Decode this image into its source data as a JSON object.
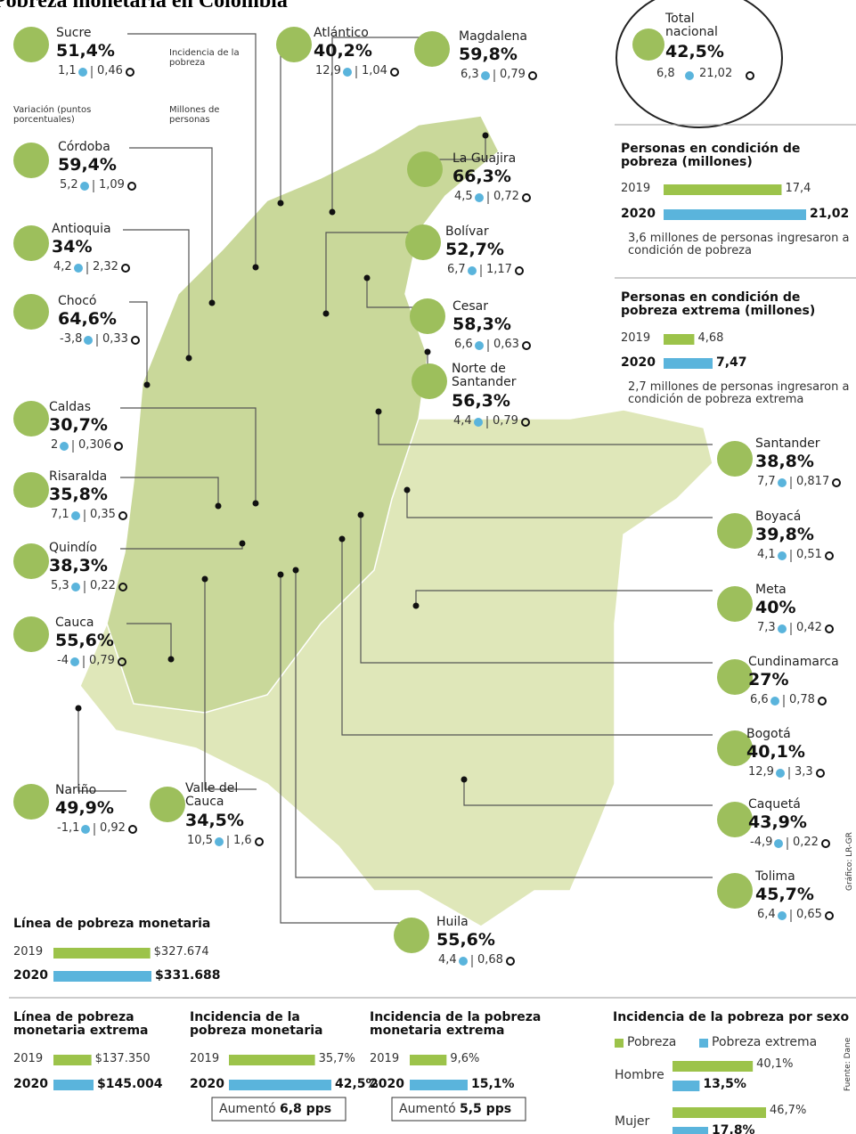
{
  "title": "Pobreza monetaria en Colombia",
  "legend": {
    "incidence": "Incidencia de la pobreza",
    "variation": "Variación (puntos porcentuales)",
    "persons": "Millones de personas"
  },
  "national": {
    "label": "Total nacional",
    "pct": "42,5%",
    "variation": "6,8",
    "persons": "21,02"
  },
  "colors": {
    "poverty": "#9cc34a",
    "extreme": "#5ab4dc",
    "circle": "#9dbf5c"
  },
  "departments": [
    {
      "name": "Sucre",
      "pct": "51,4%",
      "variation": "1,1",
      "persons": "0,46"
    },
    {
      "name": "Atlántico",
      "pct": "40,2%",
      "variation": "12,9",
      "persons": "1,04"
    },
    {
      "name": "Magdalena",
      "pct": "59,8%",
      "variation": "6,3",
      "persons": "0,79"
    },
    {
      "name": "Córdoba",
      "pct": "59,4%",
      "variation": "5,2",
      "persons": "1,09"
    },
    {
      "name": "La Guajira",
      "pct": "66,3%",
      "variation": "4,5",
      "persons": "0,72"
    },
    {
      "name": "Antioquia",
      "pct": "34%",
      "variation": "4,2",
      "persons": "2,32"
    },
    {
      "name": "Bolívar",
      "pct": "52,7%",
      "variation": "6,7",
      "persons": "1,17"
    },
    {
      "name": "Chocó",
      "pct": "64,6%",
      "variation": "-3,8",
      "persons": "0,33"
    },
    {
      "name": "Cesar",
      "pct": "58,3%",
      "variation": "6,6",
      "persons": "0,63"
    },
    {
      "name": "Norte de Santander",
      "pct": "56,3%",
      "variation": "4,4",
      "persons": "0,79"
    },
    {
      "name": "Caldas",
      "pct": "30,7%",
      "variation": "2",
      "persons": "0,306"
    },
    {
      "name": "Risaralda",
      "pct": "35,8%",
      "variation": "7,1",
      "persons": "0,35"
    },
    {
      "name": "Quindío",
      "pct": "38,3%",
      "variation": "5,3",
      "persons": "0,22"
    },
    {
      "name": "Cauca",
      "pct": "55,6%",
      "variation": "-4",
      "persons": "0,79"
    },
    {
      "name": "Nariño",
      "pct": "49,9%",
      "variation": "-1,1",
      "persons": "0,92"
    },
    {
      "name": "Valle del Cauca",
      "pct": "34,5%",
      "variation": "10,5",
      "persons": "1,6"
    },
    {
      "name": "Santander",
      "pct": "38,8%",
      "variation": "7,7",
      "persons": "0,817"
    },
    {
      "name": "Boyacá",
      "pct": "39,8%",
      "variation": "4,1",
      "persons": "0,51"
    },
    {
      "name": "Meta",
      "pct": "40%",
      "variation": "7,3",
      "persons": "0,42"
    },
    {
      "name": "Cundinamarca",
      "pct": "27%",
      "variation": "6,6",
      "persons": "0,78"
    },
    {
      "name": "Bogotá",
      "pct": "40,1%",
      "variation": "12,9",
      "persons": "3,3"
    },
    {
      "name": "Caquetá",
      "pct": "43,9%",
      "variation": "-4,9",
      "persons": "0,22"
    },
    {
      "name": "Tolima",
      "pct": "45,7%",
      "variation": "6,4",
      "persons": "0,65"
    },
    {
      "name": "Huila",
      "pct": "55,6%",
      "variation": "4,4",
      "persons": "0,68"
    }
  ],
  "panels": [
    {
      "title": "Personas en condición de pobreza (millones)",
      "rows": [
        {
          "label": "2019",
          "value": 17.4,
          "value_label": "17,4"
        },
        {
          "label": "2020",
          "value": 21.02,
          "value_label": "21,02"
        }
      ],
      "note": "3,6 millones de personas ingresaron a condición de pobreza"
    },
    {
      "title": "Personas en condición de pobreza extrema (millones)",
      "rows": [
        {
          "label": "2019",
          "value": 4.68,
          "value_label": "4,68"
        },
        {
          "label": "2020",
          "value": 7.47,
          "value_label": "7,47"
        }
      ],
      "note": "2,7 millones de personas ingresaron a condición de pobreza extrema"
    },
    {
      "title": "Línea de pobreza monetaria",
      "rows": [
        {
          "label": "2019",
          "value": 327674,
          "value_label": "$327.674"
        },
        {
          "label": "2020",
          "value": 331688,
          "value_label": "$331.688"
        }
      ]
    },
    {
      "title": "Línea de pobreza monetaria extrema",
      "rows": [
        {
          "label": "2019",
          "value": 137350,
          "value_label": "$137.350"
        },
        {
          "label": "2020",
          "value": 145004,
          "value_label": "$145.004"
        }
      ]
    },
    {
      "title": "Incidencia de la pobreza monetaria",
      "rows": [
        {
          "label": "2019",
          "value": 35.7,
          "value_label": "35,7%"
        },
        {
          "label": "2020",
          "value": 42.5,
          "value_label": "42,5%"
        }
      ],
      "boost": {
        "text": "Aumentó",
        "amount": "6,8 pps"
      }
    },
    {
      "title": "Incidencia de la pobreza monetaria extrema",
      "rows": [
        {
          "label": "2019",
          "value": 9.6,
          "value_label": "9,6%"
        },
        {
          "label": "2020",
          "value": 15.1,
          "value_label": "15,1%"
        }
      ],
      "boost": {
        "text": "Aumentó",
        "amount": "5,5 pps"
      }
    }
  ],
  "by_sex": {
    "title": "Incidencia de la pobreza por sexo",
    "legend": [
      "Pobreza",
      "Pobreza extrema"
    ],
    "groups": [
      {
        "label": "Hombre",
        "values": [
          40.1,
          13.5
        ],
        "value_labels": [
          "40,1%",
          "13,5%"
        ]
      },
      {
        "label": "Mujer",
        "values": [
          46.7,
          17.8
        ],
        "value_labels": [
          "46,7%",
          "17,8%"
        ]
      }
    ]
  },
  "credits": {
    "graphic": "Gráfico: LR-GR",
    "source": "Fuente: Dane"
  }
}
